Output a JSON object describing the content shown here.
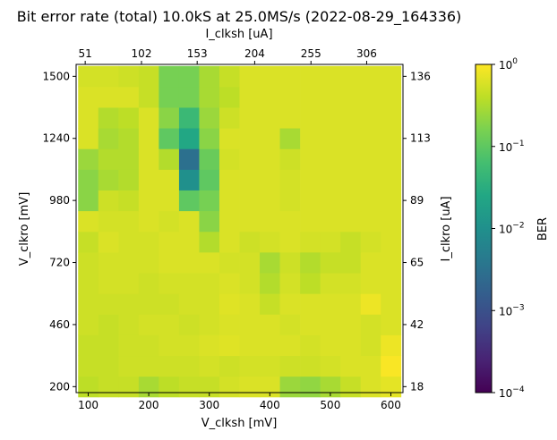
{
  "chart_data": {
    "type": "heatmap",
    "title": "Bit error rate (total) 10.0kS at 25.0MS/s (2022-08-29_164336)",
    "xlabel": "V_clksh [mV]",
    "ylabel": "V_clkro [mV]",
    "x2label": "I_clksh [uA]",
    "y2label": "I_clkro [uA]",
    "colorbar_label": "BER",
    "colorbar_scale": "log",
    "colorbar_range": [
      0.0001,
      1
    ],
    "colorbar_ticks": [
      {
        "value": 1,
        "base": "10",
        "exp": "0"
      },
      {
        "value": 0.1,
        "base": "10",
        "exp": "−1"
      },
      {
        "value": 0.01,
        "base": "10",
        "exp": "−2"
      },
      {
        "value": 0.001,
        "base": "10",
        "exp": "−3"
      },
      {
        "value": 0.0001,
        "base": "10",
        "exp": "−4"
      }
    ],
    "colormap": "viridis",
    "xlim": [
      80,
      620
    ],
    "ylim": [
      175,
      1550
    ],
    "x_ticks": [
      {
        "value": 100,
        "label": "100"
      },
      {
        "value": 200,
        "label": "200"
      },
      {
        "value": 300,
        "label": "300"
      },
      {
        "value": 400,
        "label": "400"
      },
      {
        "value": 500,
        "label": "500"
      },
      {
        "value": 600,
        "label": "600"
      }
    ],
    "y_ticks": [
      {
        "value": 200,
        "label": "200"
      },
      {
        "value": 460,
        "label": "460"
      },
      {
        "value": 720,
        "label": "720"
      },
      {
        "value": 980,
        "label": "980"
      },
      {
        "value": 1240,
        "label": "1240"
      },
      {
        "value": 1500,
        "label": "1500"
      }
    ],
    "x2_ticks": [
      {
        "value": 95,
        "label": "51"
      },
      {
        "value": 188,
        "label": "102"
      },
      {
        "value": 280,
        "label": "153"
      },
      {
        "value": 375,
        "label": "204"
      },
      {
        "value": 468,
        "label": "255"
      },
      {
        "value": 560,
        "label": "306"
      }
    ],
    "y2_ticks": [
      {
        "value": 200,
        "label": "18"
      },
      {
        "value": 460,
        "label": "42"
      },
      {
        "value": 720,
        "label": "65"
      },
      {
        "value": 980,
        "label": "89"
      },
      {
        "value": 1240,
        "label": "113"
      },
      {
        "value": 1500,
        "label": "136"
      }
    ],
    "x_cells": [
      100,
      133.3,
      166.7,
      200,
      233.3,
      266.7,
      300,
      333.3,
      366.7,
      400,
      433.3,
      466.7,
      500,
      533.3,
      566.7,
      600
    ],
    "y_cells": [
      200,
      286.7,
      373.3,
      460,
      546.7,
      633.3,
      720,
      806.7,
      893.3,
      980,
      1066.7,
      1153.3,
      1240,
      1326.7,
      1413.3,
      1500
    ],
    "values": [
      [
        0.4,
        0.45,
        0.45,
        0.3,
        0.4,
        0.45,
        0.45,
        0.55,
        0.6,
        0.6,
        0.25,
        0.22,
        0.3,
        0.45,
        0.6,
        0.7
      ],
      [
        0.45,
        0.45,
        0.5,
        0.5,
        0.5,
        0.5,
        0.55,
        0.5,
        0.55,
        0.55,
        0.5,
        0.5,
        0.55,
        0.6,
        0.6,
        0.95
      ],
      [
        0.45,
        0.45,
        0.5,
        0.5,
        0.55,
        0.55,
        0.6,
        0.65,
        0.6,
        0.6,
        0.6,
        0.55,
        0.6,
        0.6,
        0.55,
        0.8
      ],
      [
        0.5,
        0.45,
        0.5,
        0.55,
        0.55,
        0.5,
        0.55,
        0.6,
        0.6,
        0.6,
        0.55,
        0.6,
        0.6,
        0.6,
        0.55,
        0.6
      ],
      [
        0.5,
        0.5,
        0.5,
        0.5,
        0.5,
        0.55,
        0.55,
        0.65,
        0.6,
        0.45,
        0.6,
        0.6,
        0.6,
        0.6,
        0.8,
        0.6
      ],
      [
        0.5,
        0.55,
        0.55,
        0.5,
        0.55,
        0.55,
        0.55,
        0.6,
        0.55,
        0.35,
        0.55,
        0.4,
        0.55,
        0.55,
        0.6,
        0.6
      ],
      [
        0.5,
        0.55,
        0.55,
        0.55,
        0.6,
        0.6,
        0.6,
        0.55,
        0.55,
        0.3,
        0.5,
        0.35,
        0.45,
        0.45,
        0.6,
        0.6
      ],
      [
        0.45,
        0.6,
        0.55,
        0.55,
        0.6,
        0.6,
        0.35,
        0.6,
        0.5,
        0.55,
        0.6,
        0.55,
        0.55,
        0.45,
        0.55,
        0.6
      ],
      [
        0.6,
        0.55,
        0.55,
        0.6,
        0.55,
        0.6,
        0.2,
        0.6,
        0.6,
        0.6,
        0.6,
        0.6,
        0.6,
        0.6,
        0.6,
        0.6
      ],
      [
        0.2,
        0.5,
        0.45,
        0.6,
        0.6,
        0.1,
        0.15,
        0.6,
        0.6,
        0.6,
        0.55,
        0.6,
        0.6,
        0.6,
        0.6,
        0.6
      ],
      [
        0.2,
        0.3,
        0.35,
        0.6,
        0.6,
        0.01,
        0.1,
        0.6,
        0.6,
        0.6,
        0.55,
        0.6,
        0.6,
        0.6,
        0.6,
        0.6
      ],
      [
        0.25,
        0.35,
        0.35,
        0.6,
        0.35,
        0.003,
        0.12,
        0.55,
        0.6,
        0.6,
        0.5,
        0.6,
        0.6,
        0.6,
        0.6,
        0.6
      ],
      [
        0.6,
        0.3,
        0.35,
        0.6,
        0.1,
        0.025,
        0.2,
        0.6,
        0.6,
        0.6,
        0.3,
        0.6,
        0.6,
        0.6,
        0.6,
        0.6
      ],
      [
        0.6,
        0.35,
        0.4,
        0.6,
        0.2,
        0.05,
        0.25,
        0.5,
        0.6,
        0.6,
        0.6,
        0.6,
        0.6,
        0.6,
        0.6,
        0.6
      ],
      [
        0.6,
        0.6,
        0.6,
        0.45,
        0.15,
        0.15,
        0.3,
        0.4,
        0.6,
        0.6,
        0.6,
        0.6,
        0.6,
        0.6,
        0.6,
        0.6
      ],
      [
        0.55,
        0.55,
        0.5,
        0.45,
        0.15,
        0.15,
        0.3,
        0.45,
        0.6,
        0.6,
        0.6,
        0.6,
        0.6,
        0.6,
        0.6,
        0.6
      ]
    ]
  }
}
